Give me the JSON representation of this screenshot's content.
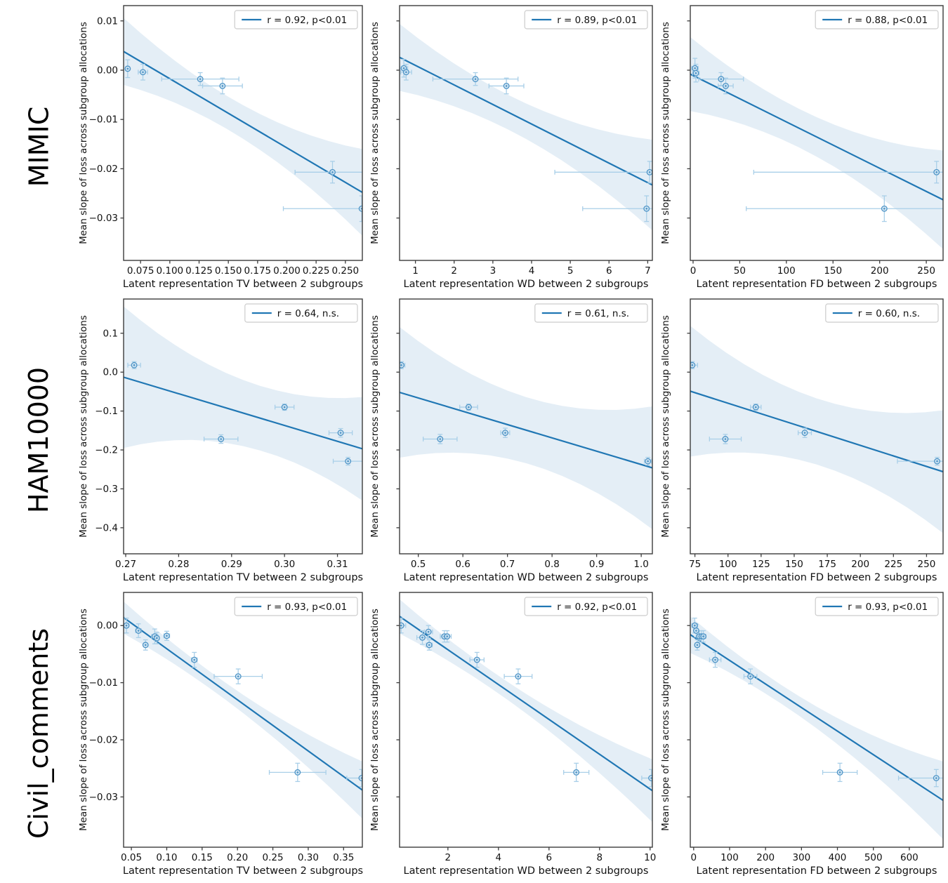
{
  "figure": {
    "rows": [
      {
        "label": "MIMIC"
      },
      {
        "label": "HAM10000"
      },
      {
        "label": "Civil_comments"
      }
    ],
    "shared_ylabel": "Mean slope of loss across subgroup allocations",
    "colors": {
      "fit_line": "#2077b4",
      "band_fill": "#2077b4",
      "errorbar": "#a9cfe8",
      "marker_edge": "#4f94c6",
      "marker_face": "#cfe4f3",
      "spine": "#3c3c3c",
      "text": "#111111",
      "legend_border": "#cccccc"
    }
  },
  "chart_data": [
    {
      "type": "scatter",
      "row": "MIMIC",
      "col_metric": "TV",
      "col_index": 0,
      "legend": "r = 0.92, p<0.01",
      "xlabel": "Latent representation TV between 2 subgroups",
      "ylabel": "Mean slope of loss across subgroup allocations",
      "xlim": [
        0.0605,
        0.2645
      ],
      "ylim": [
        -0.0386,
        0.0131
      ],
      "xticks": {
        "values": [
          0.075,
          0.1,
          0.125,
          0.15,
          0.175,
          0.2,
          0.225,
          0.25
        ],
        "labels": [
          "0.075",
          "0.100",
          "0.125",
          "0.150",
          "0.175",
          "0.200",
          "0.225",
          "0.250"
        ]
      },
      "yticks": {
        "values": [
          0.01,
          0.0,
          -0.01,
          -0.02,
          -0.03
        ],
        "labels": [
          "0.01",
          "0.00",
          "−0.01",
          "−0.02",
          "−0.03"
        ],
        "show_labels": true
      },
      "points": [
        [
          0.064,
          0.0003,
          0.0015,
          0.0018
        ],
        [
          0.077,
          -0.0004,
          0.004,
          0.0016
        ],
        [
          0.126,
          -0.0018,
          0.033,
          0.0013
        ],
        [
          0.145,
          -0.0032,
          0.017,
          0.0016
        ],
        [
          0.239,
          -0.0207,
          0.032,
          0.0022
        ],
        [
          0.264,
          -0.0281,
          0.067,
          0.0026
        ]
      ],
      "fit_line": {
        "x": [
          0.0605,
          0.2645
        ],
        "y": [
          0.0038,
          -0.0248
        ]
      },
      "band_halfwidths": [
        0.0068,
        0.0034,
        0.0088
      ]
    },
    {
      "type": "scatter",
      "row": "MIMIC",
      "col_metric": "WD",
      "col_index": 1,
      "legend": "r = 0.89, p<0.01",
      "xlabel": "Latent representation WD between 2 subgroups",
      "ylabel": "Mean slope of loss across subgroup allocations",
      "xlim": [
        0.59,
        7.12
      ],
      "ylim": [
        -0.0386,
        0.0131
      ],
      "xticks": {
        "values": [
          1,
          2,
          3,
          4,
          5,
          6,
          7
        ],
        "labels": [
          "1",
          "2",
          "3",
          "4",
          "5",
          "6",
          "7"
        ]
      },
      "yticks": {
        "values": [
          0.01,
          0.0,
          -0.01,
          -0.02,
          -0.03
        ],
        "labels": [
          "0.01",
          "0.00",
          "−0.01",
          "−0.02",
          "−0.03"
        ],
        "show_labels": false
      },
      "points": [
        [
          0.7,
          0.0004,
          0.1,
          0.0018
        ],
        [
          0.76,
          -0.0004,
          0.14,
          0.0016
        ],
        [
          2.55,
          -0.0018,
          1.1,
          0.0013
        ],
        [
          3.35,
          -0.0032,
          0.45,
          0.0016
        ],
        [
          7.05,
          -0.0207,
          2.45,
          0.0022
        ],
        [
          6.97,
          -0.0281,
          1.65,
          0.0026
        ]
      ],
      "fit_line": {
        "x": [
          0.59,
          7.12
        ],
        "y": [
          0.0026,
          -0.0233
        ]
      },
      "band_halfwidths": [
        0.0068,
        0.0036,
        0.0092
      ]
    },
    {
      "type": "scatter",
      "row": "MIMIC",
      "col_metric": "FD",
      "col_index": 2,
      "legend": "r = 0.88, p<0.01",
      "xlabel": "Latent representation FD between 2 subgroups",
      "ylabel": "Mean slope of loss across subgroup allocations",
      "xlim": [
        -3,
        268
      ],
      "ylim": [
        -0.0386,
        0.0131
      ],
      "xticks": {
        "values": [
          0,
          50,
          100,
          150,
          200,
          250
        ],
        "labels": [
          "0",
          "50",
          "100",
          "150",
          "200",
          "250"
        ]
      },
      "yticks": {
        "values": [
          0.01,
          0.0,
          -0.01,
          -0.02,
          -0.03
        ],
        "labels": [
          "0.01",
          "0.00",
          "−0.01",
          "−0.02",
          "−0.03"
        ],
        "show_labels": false
      },
      "points": [
        [
          2,
          0.0004,
          3.5,
          0.002
        ],
        [
          3,
          -0.0006,
          3.5,
          0.0018
        ],
        [
          30,
          -0.0018,
          24,
          0.0013
        ],
        [
          35,
          -0.0032,
          8,
          0.0016
        ],
        [
          261,
          -0.0207,
          196,
          0.0022
        ],
        [
          205,
          -0.0281,
          148,
          0.0026
        ]
      ],
      "fit_line": {
        "x": [
          -3,
          268
        ],
        "y": [
          -0.0008,
          -0.0263
        ]
      },
      "band_halfwidths": [
        0.0075,
        0.004,
        0.01
      ]
    },
    {
      "type": "scatter",
      "row": "HAM10000",
      "col_metric": "TV",
      "col_index": 0,
      "legend": "r = 0.64, n.s.",
      "xlabel": "Latent representation TV between 2 subgroups",
      "ylabel": "Mean slope of loss across subgroup allocations",
      "xlim": [
        0.2696,
        0.3147
      ],
      "ylim": [
        -0.467,
        0.188
      ],
      "xticks": {
        "values": [
          0.27,
          0.28,
          0.29,
          0.3,
          0.31
        ],
        "labels": [
          "0.27",
          "0.28",
          "0.29",
          "0.30",
          "0.31"
        ]
      },
      "yticks": {
        "values": [
          0.1,
          0.0,
          -0.1,
          -0.2,
          -0.3,
          -0.4
        ],
        "labels": [
          "0.1",
          "0.0",
          "−0.1",
          "−0.2",
          "−0.3",
          "−0.4"
        ],
        "show_labels": true
      },
      "points": [
        [
          0.2716,
          0.018,
          0.0012,
          0.009
        ],
        [
          0.288,
          -0.172,
          0.0032,
          0.011
        ],
        [
          0.3,
          -0.09,
          0.0018,
          0.008
        ],
        [
          0.3106,
          -0.156,
          0.0022,
          0.011
        ],
        [
          0.312,
          -0.229,
          0.0028,
          0.01
        ]
      ],
      "fit_line": {
        "x": [
          0.2696,
          0.3147
        ],
        "y": [
          -0.013,
          -0.197
        ]
      },
      "band_halfwidths": [
        0.182,
        0.085,
        0.133
      ]
    },
    {
      "type": "scatter",
      "row": "HAM10000",
      "col_metric": "WD",
      "col_index": 1,
      "legend": "r = 0.61, n.s.",
      "xlabel": "Latent representation WD between 2 subgroups",
      "ylabel": "Mean slope of loss across subgroup allocations",
      "xlim": [
        0.458,
        1.025
      ],
      "ylim": [
        -0.467,
        0.188
      ],
      "xticks": {
        "values": [
          0.5,
          0.6,
          0.7,
          0.8,
          0.9,
          1.0
        ],
        "labels": [
          "0.5",
          "0.6",
          "0.7",
          "0.8",
          "0.9",
          "1.0"
        ]
      },
      "yticks": {
        "values": [
          0.1,
          0.0,
          -0.1,
          -0.2,
          -0.3,
          -0.4
        ],
        "labels": [
          "0.1",
          "0.0",
          "−0.1",
          "−0.2",
          "−0.3",
          "−0.4"
        ],
        "show_labels": false
      },
      "points": [
        [
          0.462,
          0.018,
          0.008,
          0.009
        ],
        [
          0.549,
          -0.172,
          0.038,
          0.012
        ],
        [
          0.613,
          -0.09,
          0.02,
          0.008
        ],
        [
          0.695,
          -0.156,
          0.01,
          0.012
        ],
        [
          1.015,
          -0.229,
          0.008,
          0.01
        ]
      ],
      "fit_line": {
        "x": [
          0.458,
          1.025
        ],
        "y": [
          -0.052,
          -0.246
        ]
      },
      "band_halfwidths": [
        0.168,
        0.085,
        0.158
      ]
    },
    {
      "type": "scatter",
      "row": "HAM10000",
      "col_metric": "FD",
      "col_index": 2,
      "legend": "r = 0.60, n.s.",
      "xlabel": "Latent representation FD between 2 subgroups",
      "ylabel": "Mean slope of loss across subgroup allocations",
      "xlim": [
        71.5,
        262.5
      ],
      "ylim": [
        -0.467,
        0.188
      ],
      "xticks": {
        "values": [
          75,
          100,
          125,
          150,
          175,
          200,
          225,
          250
        ],
        "labels": [
          "75",
          "100",
          "125",
          "150",
          "175",
          "200",
          "225",
          "250"
        ]
      },
      "yticks": {
        "values": [
          0.1,
          0.0,
          -0.1,
          -0.2,
          -0.3,
          -0.4
        ],
        "labels": [
          "0.1",
          "0.0",
          "−0.1",
          "−0.2",
          "−0.3",
          "−0.4"
        ],
        "show_labels": false
      },
      "points": [
        [
          73,
          0.018,
          4,
          0.009
        ],
        [
          98,
          -0.172,
          12,
          0.012
        ],
        [
          121,
          -0.09,
          4,
          0.008
        ],
        [
          158,
          -0.156,
          5,
          0.012
        ],
        [
          258,
          -0.229,
          30,
          0.01
        ]
      ],
      "fit_line": {
        "x": [
          71.5,
          262.5
        ],
        "y": [
          -0.049,
          -0.256
        ]
      },
      "band_halfwidths": [
        0.168,
        0.085,
        0.158
      ]
    },
    {
      "type": "scatter",
      "row": "Civil_comments",
      "col_metric": "TV",
      "col_index": 0,
      "legend": "r = 0.93, p<0.01",
      "xlabel": "Latent representation TV between 2 subgroups",
      "ylabel": "Mean slope of loss across subgroup allocations",
      "xlim": [
        0.039,
        0.3765
      ],
      "ylim": [
        -0.0388,
        0.0058
      ],
      "xticks": {
        "values": [
          0.05,
          0.1,
          0.15,
          0.2,
          0.25,
          0.3,
          0.35
        ],
        "labels": [
          "0.05",
          "0.10",
          "0.15",
          "0.20",
          "0.25",
          "0.30",
          "0.35"
        ]
      },
      "yticks": {
        "values": [
          0.0,
          -0.01,
          -0.02,
          -0.03
        ],
        "labels": [
          "0.00",
          "−0.01",
          "−0.02",
          "−0.03"
        ],
        "show_labels": true
      },
      "points": [
        [
          0.043,
          0.0,
          0.0025,
          0.0013
        ],
        [
          0.06,
          -0.0009,
          0.004,
          0.0012
        ],
        [
          0.07,
          -0.0034,
          0.0025,
          0.0009
        ],
        [
          0.083,
          -0.0019,
          0.0045,
          0.0013
        ],
        [
          0.086,
          -0.0022,
          0.003,
          0.001
        ],
        [
          0.1,
          -0.0018,
          0.004,
          0.0008
        ],
        [
          0.139,
          -0.006,
          0.004,
          0.0013
        ],
        [
          0.201,
          -0.0089,
          0.034,
          0.0013
        ],
        [
          0.285,
          -0.0257,
          0.04,
          0.0016
        ],
        [
          0.3755,
          -0.0267,
          0.021,
          0.0015
        ]
      ],
      "fit_line": {
        "x": [
          0.039,
          0.3765
        ],
        "y": [
          0.0014,
          -0.0288
        ]
      },
      "band_halfwidths": [
        0.0028,
        0.0016,
        0.005
      ]
    },
    {
      "type": "scatter",
      "row": "Civil_comments",
      "col_metric": "WD",
      "col_index": 1,
      "legend": "r = 0.92, p<0.01",
      "xlabel": "Latent representation WD between 2 subgroups",
      "ylabel": "Mean slope of loss across subgroup allocations",
      "xlim": [
        0.087,
        10.09
      ],
      "ylim": [
        -0.0388,
        0.0058
      ],
      "xticks": {
        "values": [
          2,
          4,
          6,
          8,
          10
        ],
        "labels": [
          "2",
          "4",
          "6",
          "8",
          "10"
        ]
      },
      "yticks": {
        "values": [
          0.0,
          -0.01,
          -0.02,
          -0.03
        ],
        "labels": [
          "0.00",
          "−0.01",
          "−0.02",
          "−0.03"
        ],
        "show_labels": false
      },
      "points": [
        [
          0.15,
          0.0,
          0.18,
          0.0013
        ],
        [
          0.99,
          -0.0021,
          0.22,
          0.0012
        ],
        [
          1.23,
          -0.0011,
          0.16,
          0.0011
        ],
        [
          1.26,
          -0.0034,
          0.12,
          0.0009
        ],
        [
          1.86,
          -0.0019,
          0.16,
          0.001
        ],
        [
          1.97,
          -0.0019,
          0.16,
          0.001
        ],
        [
          3.15,
          -0.006,
          0.28,
          0.0013
        ],
        [
          4.78,
          -0.0089,
          0.55,
          0.0013
        ],
        [
          7.08,
          -0.0257,
          0.5,
          0.0016
        ],
        [
          10.05,
          -0.0267,
          0.38,
          0.0015
        ]
      ],
      "fit_line": {
        "x": [
          0.087,
          10.09
        ],
        "y": [
          0.0016,
          -0.0289
        ]
      },
      "band_halfwidths": [
        0.003,
        0.0017,
        0.0055
      ]
    },
    {
      "type": "scatter",
      "row": "Civil_comments",
      "col_metric": "FD",
      "col_index": 2,
      "legend": "r = 0.93, p<0.01",
      "xlabel": "Latent representation FD between 2 subgroups",
      "ylabel": "Mean slope of loss across subgroup allocations",
      "xlim": [
        -9.4,
        694
      ],
      "ylim": [
        -0.0388,
        0.0058
      ],
      "xticks": {
        "values": [
          0,
          100,
          200,
          300,
          400,
          500,
          600
        ],
        "labels": [
          "0",
          "100",
          "200",
          "300",
          "400",
          "500",
          "600"
        ]
      },
      "yticks": {
        "values": [
          0.0,
          -0.01,
          -0.02,
          -0.03
        ],
        "labels": [
          "0.00",
          "−0.01",
          "−0.02",
          "−0.03"
        ],
        "show_labels": false
      },
      "points": [
        [
          3,
          0.0,
          8,
          0.0013
        ],
        [
          7,
          -0.0009,
          6,
          0.0011
        ],
        [
          10,
          -0.0034,
          6,
          0.0009
        ],
        [
          16,
          -0.0019,
          7,
          0.001
        ],
        [
          22,
          -0.0019,
          7,
          0.001
        ],
        [
          27,
          -0.0019,
          7,
          0.001
        ],
        [
          60,
          -0.006,
          16,
          0.0013
        ],
        [
          158,
          -0.0089,
          18,
          0.0013
        ],
        [
          407,
          -0.0257,
          48,
          0.0016
        ],
        [
          675,
          -0.0267,
          105,
          0.0015
        ]
      ],
      "fit_line": {
        "x": [
          -9.4,
          694
        ],
        "y": [
          -0.0016,
          -0.0306
        ]
      },
      "band_halfwidths": [
        0.0032,
        0.0019,
        0.0068
      ]
    }
  ]
}
